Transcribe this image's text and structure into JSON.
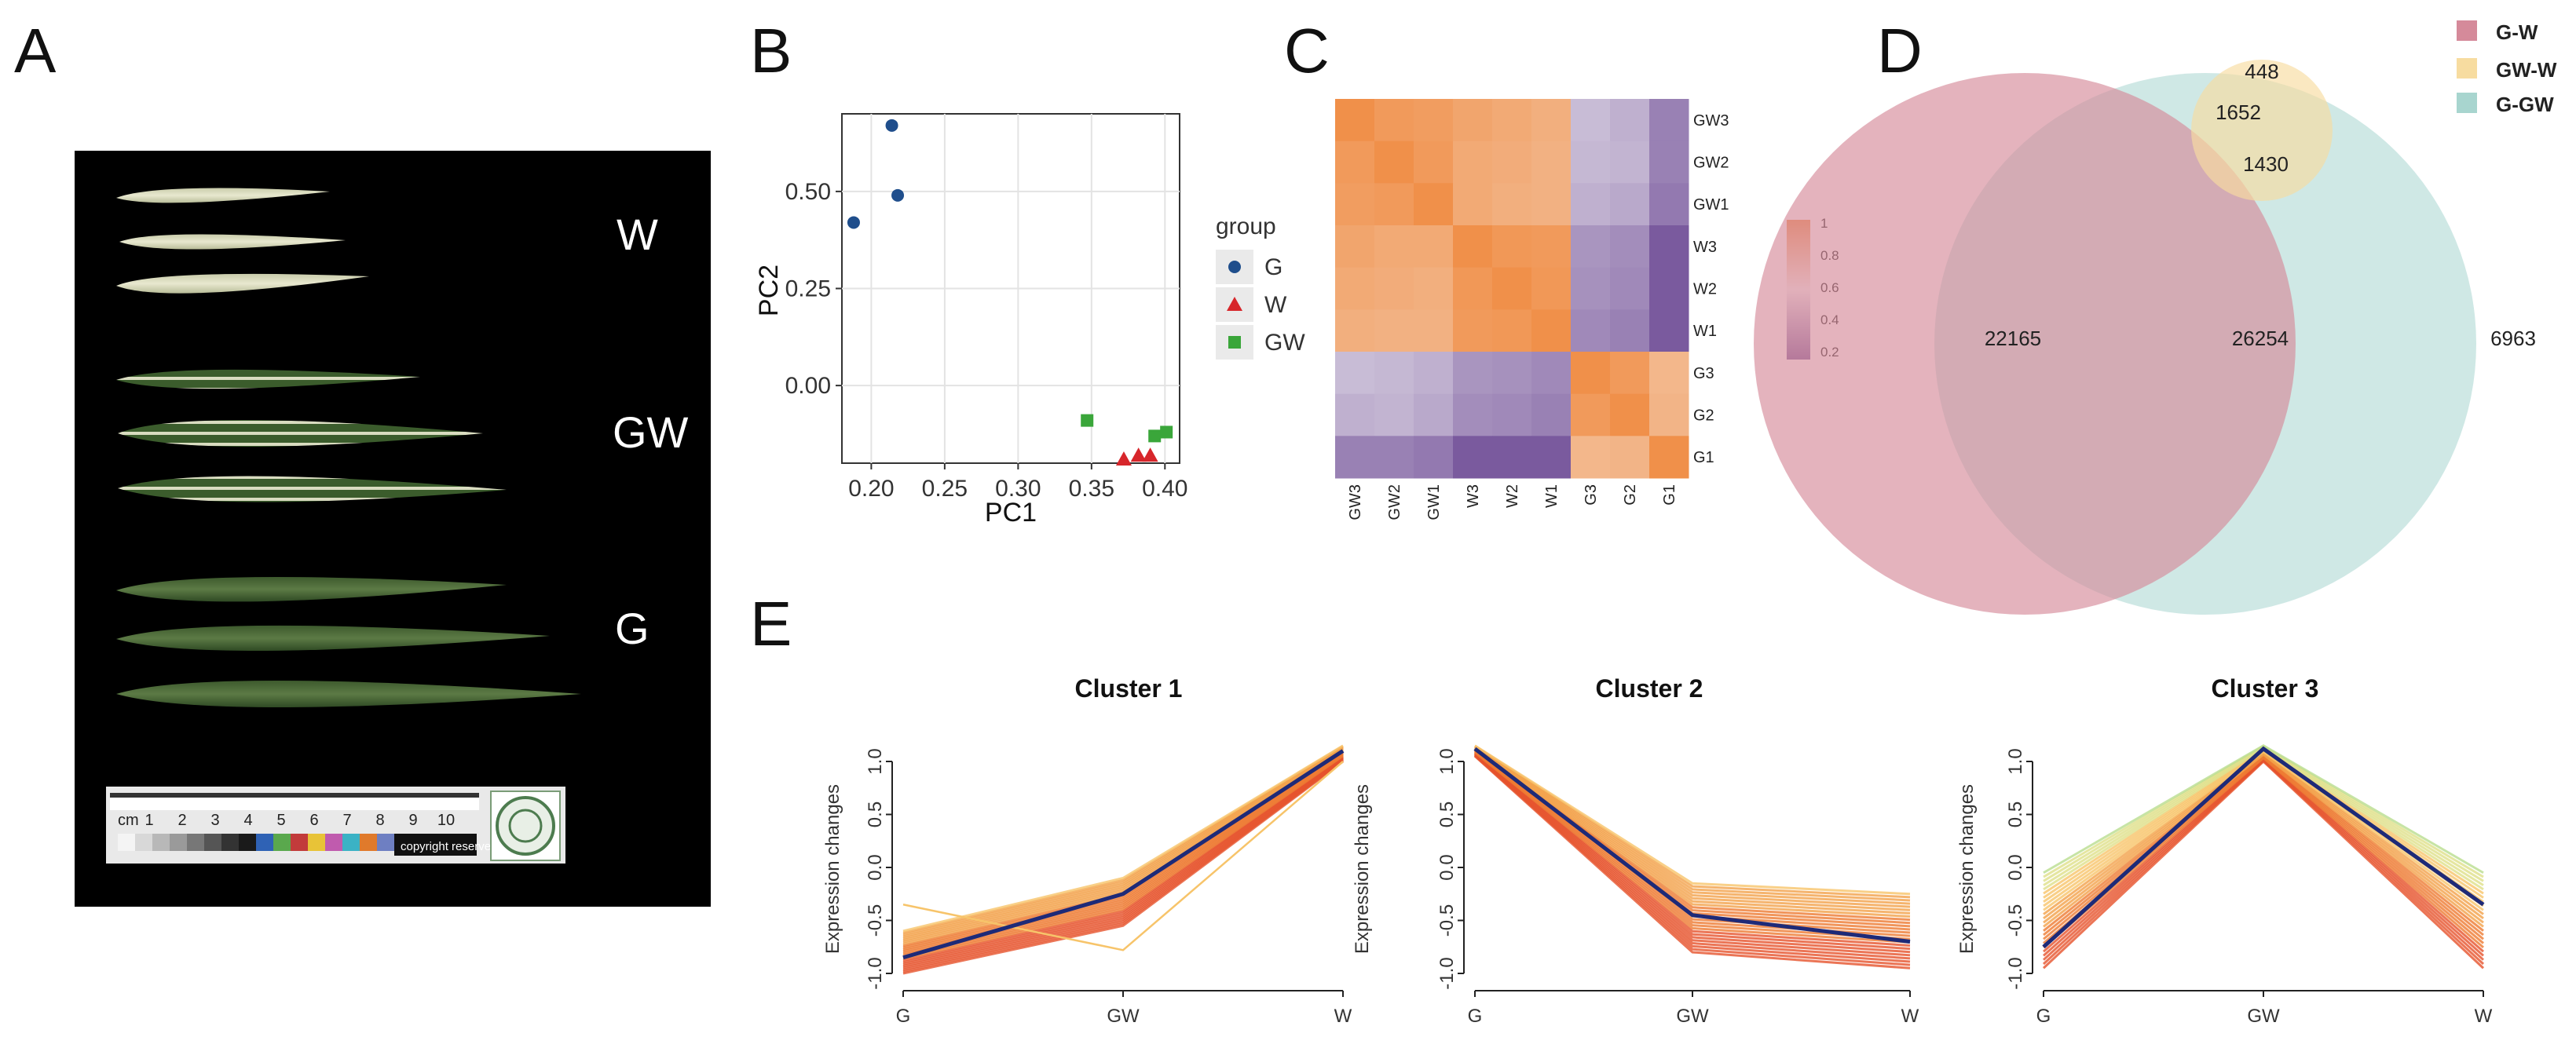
{
  "panel_letters": {
    "A": "A",
    "B": "B",
    "C": "C",
    "D": "D",
    "E": "E"
  },
  "photo": {
    "labels": [
      "W",
      "GW",
      "G"
    ],
    "scale": {
      "unit": "cm",
      "ticks": [
        "1",
        "2",
        "3",
        "4",
        "5",
        "6",
        "7",
        "8",
        "9",
        "10"
      ],
      "copyright": "copyright reserved"
    }
  },
  "chart_data": [
    {
      "type": "scatter",
      "title": "",
      "xlabel": "PC1",
      "ylabel": "PC2",
      "xlim": [
        0.18,
        0.41
      ],
      "ylim": [
        -0.2,
        0.7
      ],
      "xticks": [
        0.2,
        0.25,
        0.3,
        0.35,
        0.4
      ],
      "xtick_labels": [
        "0.20",
        "0.25",
        "0.30",
        "0.35",
        "0.40"
      ],
      "yticks": [
        0.0,
        0.25,
        0.5
      ],
      "ytick_labels": [
        "0.00",
        "0.25",
        "0.50"
      ],
      "legend_title": "group",
      "series": [
        {
          "name": "G",
          "color": "#1f4e8c",
          "marker": "circle",
          "points": [
            [
              0.188,
              0.42
            ],
            [
              0.214,
              0.67
            ],
            [
              0.218,
              0.49
            ]
          ]
        },
        {
          "name": "W",
          "color": "#d7262b",
          "marker": "triangle",
          "points": [
            [
              0.372,
              -0.19
            ],
            [
              0.382,
              -0.18
            ],
            [
              0.39,
              -0.18
            ]
          ]
        },
        {
          "name": "GW",
          "color": "#3aa63a",
          "marker": "square",
          "points": [
            [
              0.347,
              -0.09
            ],
            [
              0.393,
              -0.13
            ],
            [
              0.401,
              -0.12
            ]
          ]
        }
      ]
    },
    {
      "type": "heatmap",
      "rows": [
        "GW3",
        "GW2",
        "GW1",
        "W3",
        "W2",
        "W1",
        "G3",
        "G2",
        "G1"
      ],
      "cols": [
        "GW3",
        "GW2",
        "GW1",
        "W3",
        "W2",
        "W1",
        "G3",
        "G2",
        "G1"
      ],
      "values": [
        [
          1.0,
          0.96,
          0.95,
          0.92,
          0.9,
          0.88,
          0.45,
          0.42,
          0.3
        ],
        [
          0.96,
          1.0,
          0.96,
          0.9,
          0.89,
          0.87,
          0.44,
          0.43,
          0.3
        ],
        [
          0.95,
          0.96,
          1.0,
          0.9,
          0.88,
          0.87,
          0.42,
          0.4,
          0.28
        ],
        [
          0.92,
          0.9,
          0.9,
          1.0,
          0.97,
          0.96,
          0.35,
          0.33,
          0.2
        ],
        [
          0.9,
          0.89,
          0.88,
          0.97,
          1.0,
          0.97,
          0.34,
          0.32,
          0.2
        ],
        [
          0.88,
          0.87,
          0.87,
          0.96,
          0.97,
          1.0,
          0.32,
          0.3,
          0.18
        ],
        [
          0.45,
          0.44,
          0.42,
          0.35,
          0.34,
          0.32,
          1.0,
          0.96,
          0.85
        ],
        [
          0.42,
          0.43,
          0.4,
          0.33,
          0.32,
          0.3,
          0.96,
          1.0,
          0.86
        ],
        [
          0.3,
          0.3,
          0.28,
          0.2,
          0.2,
          0.18,
          0.85,
          0.86,
          1.0
        ]
      ],
      "colorbar_ticks": [
        "1",
        "0.8",
        "0.6",
        "0.4",
        "0.2"
      ],
      "colors": {
        "high": "#f0904a",
        "mid": "#f7f7f7",
        "low": "#7a5a9e"
      }
    },
    {
      "type": "venn",
      "sets": [
        "G-W",
        "GW-W",
        "G-GW"
      ],
      "colors": [
        "#d58a9a",
        "#f7dca0",
        "#a8d5cf"
      ],
      "regions": {
        "G-W only": 22165,
        "GW-W only": 448,
        "G-GW only": 6963,
        "G-W & GW-W": 1652,
        "all three": 1430,
        "G-W & G-GW": 26254
      }
    },
    {
      "type": "line",
      "title": "Cluster 1",
      "categories": [
        "G",
        "GW",
        "W"
      ],
      "ylabel": "Expression changes",
      "ylim": [
        -1.0,
        1.0
      ],
      "yticks": [
        "-1.0",
        "-0.5",
        "0.0",
        "0.5",
        "1.0"
      ],
      "centroid": [
        -0.85,
        -0.25,
        1.1
      ],
      "band_low": [
        -1.0,
        -0.55,
        1.0
      ],
      "band_high": [
        -0.6,
        -0.1,
        1.15
      ],
      "outlier": [
        -0.35,
        -0.78,
        1.0
      ]
    },
    {
      "type": "line",
      "title": "Cluster 2",
      "categories": [
        "G",
        "GW",
        "W"
      ],
      "ylabel": "Expression changes",
      "ylim": [
        -1.0,
        1.0
      ],
      "yticks": [
        "-1.0",
        "-0.5",
        "0.0",
        "0.5",
        "1.0"
      ],
      "centroid": [
        1.12,
        -0.45,
        -0.7
      ],
      "band_low": [
        1.05,
        -0.8,
        -0.95
      ],
      "band_high": [
        1.15,
        -0.15,
        -0.25
      ]
    },
    {
      "type": "line",
      "title": "Cluster 3",
      "categories": [
        "G",
        "GW",
        "W"
      ],
      "ylabel": "Expression changes",
      "ylim": [
        -1.0,
        1.0
      ],
      "yticks": [
        "-1.0",
        "-0.5",
        "0.0",
        "0.5",
        "1.0"
      ],
      "centroid": [
        -0.75,
        1.12,
        -0.35
      ],
      "band_low": [
        -0.95,
        1.0,
        -0.95
      ],
      "band_high": [
        -0.05,
        1.15,
        -0.05
      ]
    }
  ],
  "colors": {
    "photo_bg": "#000000",
    "line_dark": "#1e2a78"
  }
}
